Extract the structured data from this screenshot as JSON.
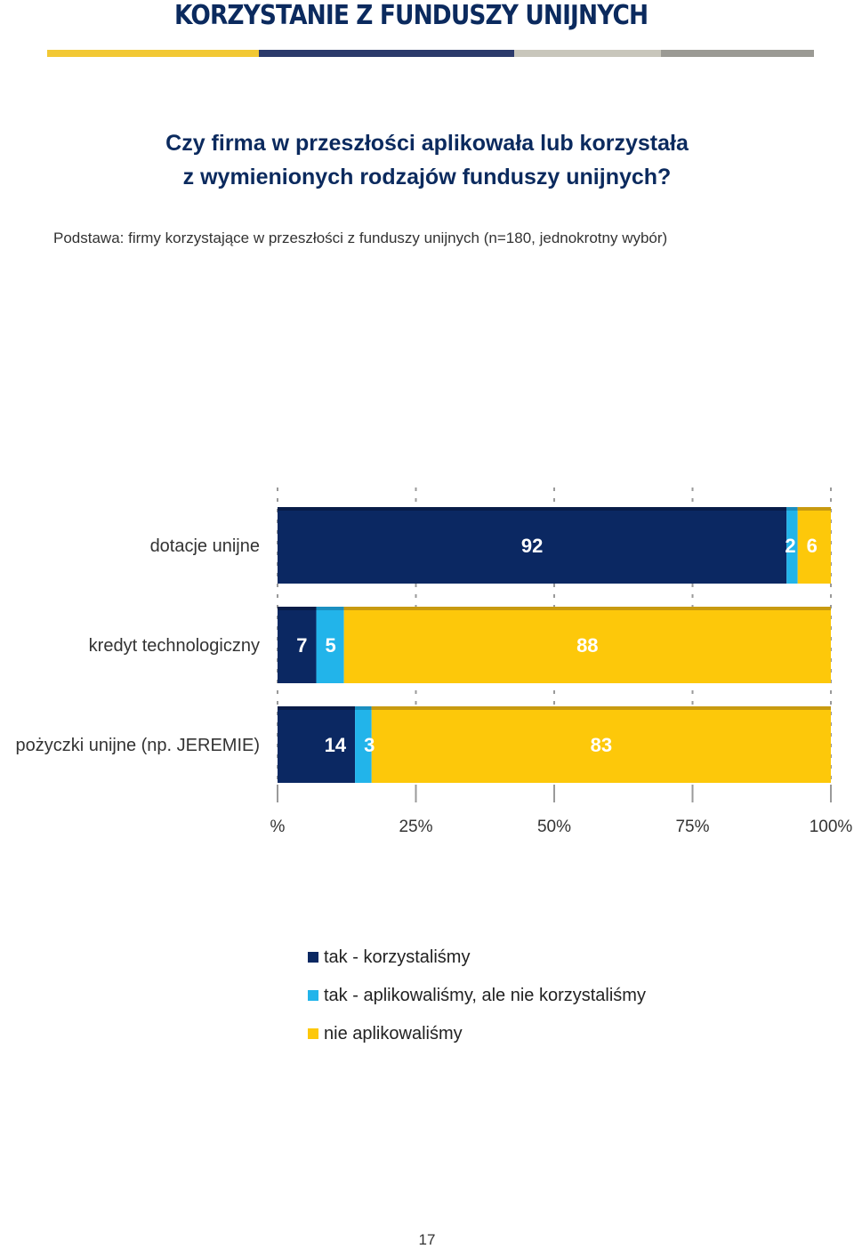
{
  "header": {
    "title": "KORZYSTANIE Z FUNDUSZY UNIJNYCH",
    "stripe_colors": [
      "#f2c834",
      "#2b3a6b",
      "#c8c6bb",
      "#9b9a94"
    ]
  },
  "question": {
    "line1": "Czy firma w przeszłości aplikowała lub korzystała",
    "line2": "z wymienionych rodzajów funduszy unijnych?"
  },
  "basis": "Podstawa: firmy korzystające w przeszłości z funduszy unijnych (n=180, jednokrotny wybór)",
  "chart_data": {
    "type": "bar",
    "orientation": "horizontal",
    "stacked": true,
    "categories": [
      "dotacje unijne",
      "kredyt technologiczny",
      "pożyczki unijne (np. JEREMIE)"
    ],
    "series": [
      {
        "name": "tak - korzystaliśmy",
        "values": [
          92,
          7,
          14
        ],
        "color": "#0b2862"
      },
      {
        "name": "tak - aplikowaliśmy, ale nie korzystaliśmy",
        "values": [
          2,
          5,
          3
        ],
        "color": "#22b4ea"
      },
      {
        "name": "nie aplikowaliśmy",
        "values": [
          6,
          88,
          83
        ],
        "color": "#fdc80a"
      }
    ],
    "xlim": [
      0,
      100
    ],
    "x_ticks": [
      "%",
      "25%",
      "50%",
      "75%",
      "100%"
    ],
    "grid": true
  },
  "legend": [
    {
      "label": "tak - korzystaliśmy",
      "color": "#0b2862"
    },
    {
      "label": "tak - aplikowaliśmy, ale nie korzystaliśmy",
      "color": "#22b4ea"
    },
    {
      "label": "nie aplikowaliśmy",
      "color": "#fdc80a"
    }
  ],
  "page_number": "17"
}
